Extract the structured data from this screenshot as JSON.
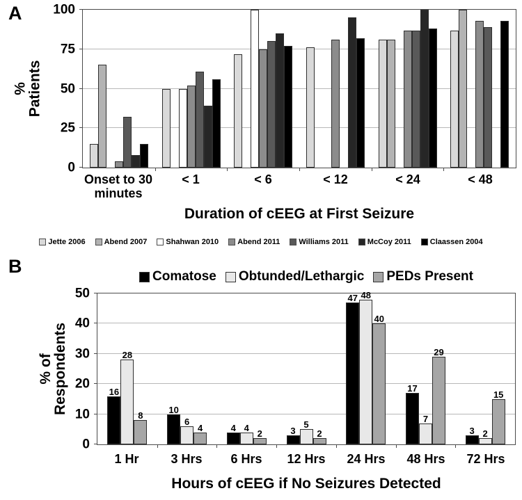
{
  "figure": {
    "panel_a": {
      "letter": "A",
      "ylabel": "% Patients",
      "xlabel": "Duration of cEEG at First Seizure"
    },
    "panel_b": {
      "letter": "B",
      "ylabel": "% of\nRespondents",
      "xlabel": "Hours of cEEG if No Seizures Detected"
    }
  },
  "chart_data": [
    {
      "id": "A",
      "type": "bar",
      "title": "",
      "xlabel": "Duration of cEEG at First Seizure",
      "ylabel": "% Patients",
      "ylim": [
        0,
        100
      ],
      "ytick_step": 25,
      "yticks": [
        0,
        25,
        50,
        75,
        100
      ],
      "grid": true,
      "legend_position": "bottom",
      "data_labels": false,
      "categories": [
        "Onset to 30\nminutes",
        "< 1",
        "< 6",
        "< 12",
        "< 24",
        "< 48"
      ],
      "series": [
        {
          "name": "Jette 2006",
          "color": "#d9d9d9",
          "values": [
            15,
            50,
            72,
            76,
            81,
            87
          ]
        },
        {
          "name": "Abend 2007",
          "color": "#b3b3b3",
          "values": [
            65,
            null,
            null,
            null,
            81,
            100
          ]
        },
        {
          "name": "Shahwan 2010",
          "color": "#ffffff",
          "values": [
            null,
            50,
            100,
            null,
            null,
            null
          ]
        },
        {
          "name": "Abend 2011",
          "color": "#8c8c8c",
          "values": [
            4,
            52,
            75,
            81,
            87,
            93
          ]
        },
        {
          "name": "Williams 2011",
          "color": "#595959",
          "values": [
            32,
            61,
            80,
            null,
            87,
            89
          ]
        },
        {
          "name": "McCoy 2011",
          "color": "#262626",
          "values": [
            8,
            39,
            85,
            95,
            100,
            null
          ]
        },
        {
          "name": "Claassen 2004",
          "color": "#000000",
          "values": [
            15,
            56,
            77,
            82,
            88,
            93
          ]
        }
      ]
    },
    {
      "id": "B",
      "type": "bar",
      "title": "",
      "xlabel": "Hours of cEEG if No Seizures Detected",
      "ylabel": "% of\nRespondents",
      "ylim": [
        0,
        50
      ],
      "ytick_step": 10,
      "yticks": [
        0,
        10,
        20,
        30,
        40,
        50
      ],
      "grid": true,
      "legend_position": "top",
      "data_labels": true,
      "categories": [
        "1 Hr",
        "3 Hrs",
        "6 Hrs",
        "12 Hrs",
        "24 Hrs",
        "48 Hrs",
        "72 Hrs"
      ],
      "series": [
        {
          "name": "Comatose",
          "color": "#000000",
          "values": [
            16,
            10,
            4,
            3,
            47,
            17,
            3
          ]
        },
        {
          "name": "Obtunded/Lethargic",
          "color": "#e8e8e8",
          "values": [
            28,
            6,
            4,
            5,
            48,
            7,
            2
          ]
        },
        {
          "name": "PEDs Present",
          "color": "#a6a6a6",
          "values": [
            8,
            4,
            2,
            2,
            40,
            29,
            15
          ]
        }
      ]
    }
  ]
}
